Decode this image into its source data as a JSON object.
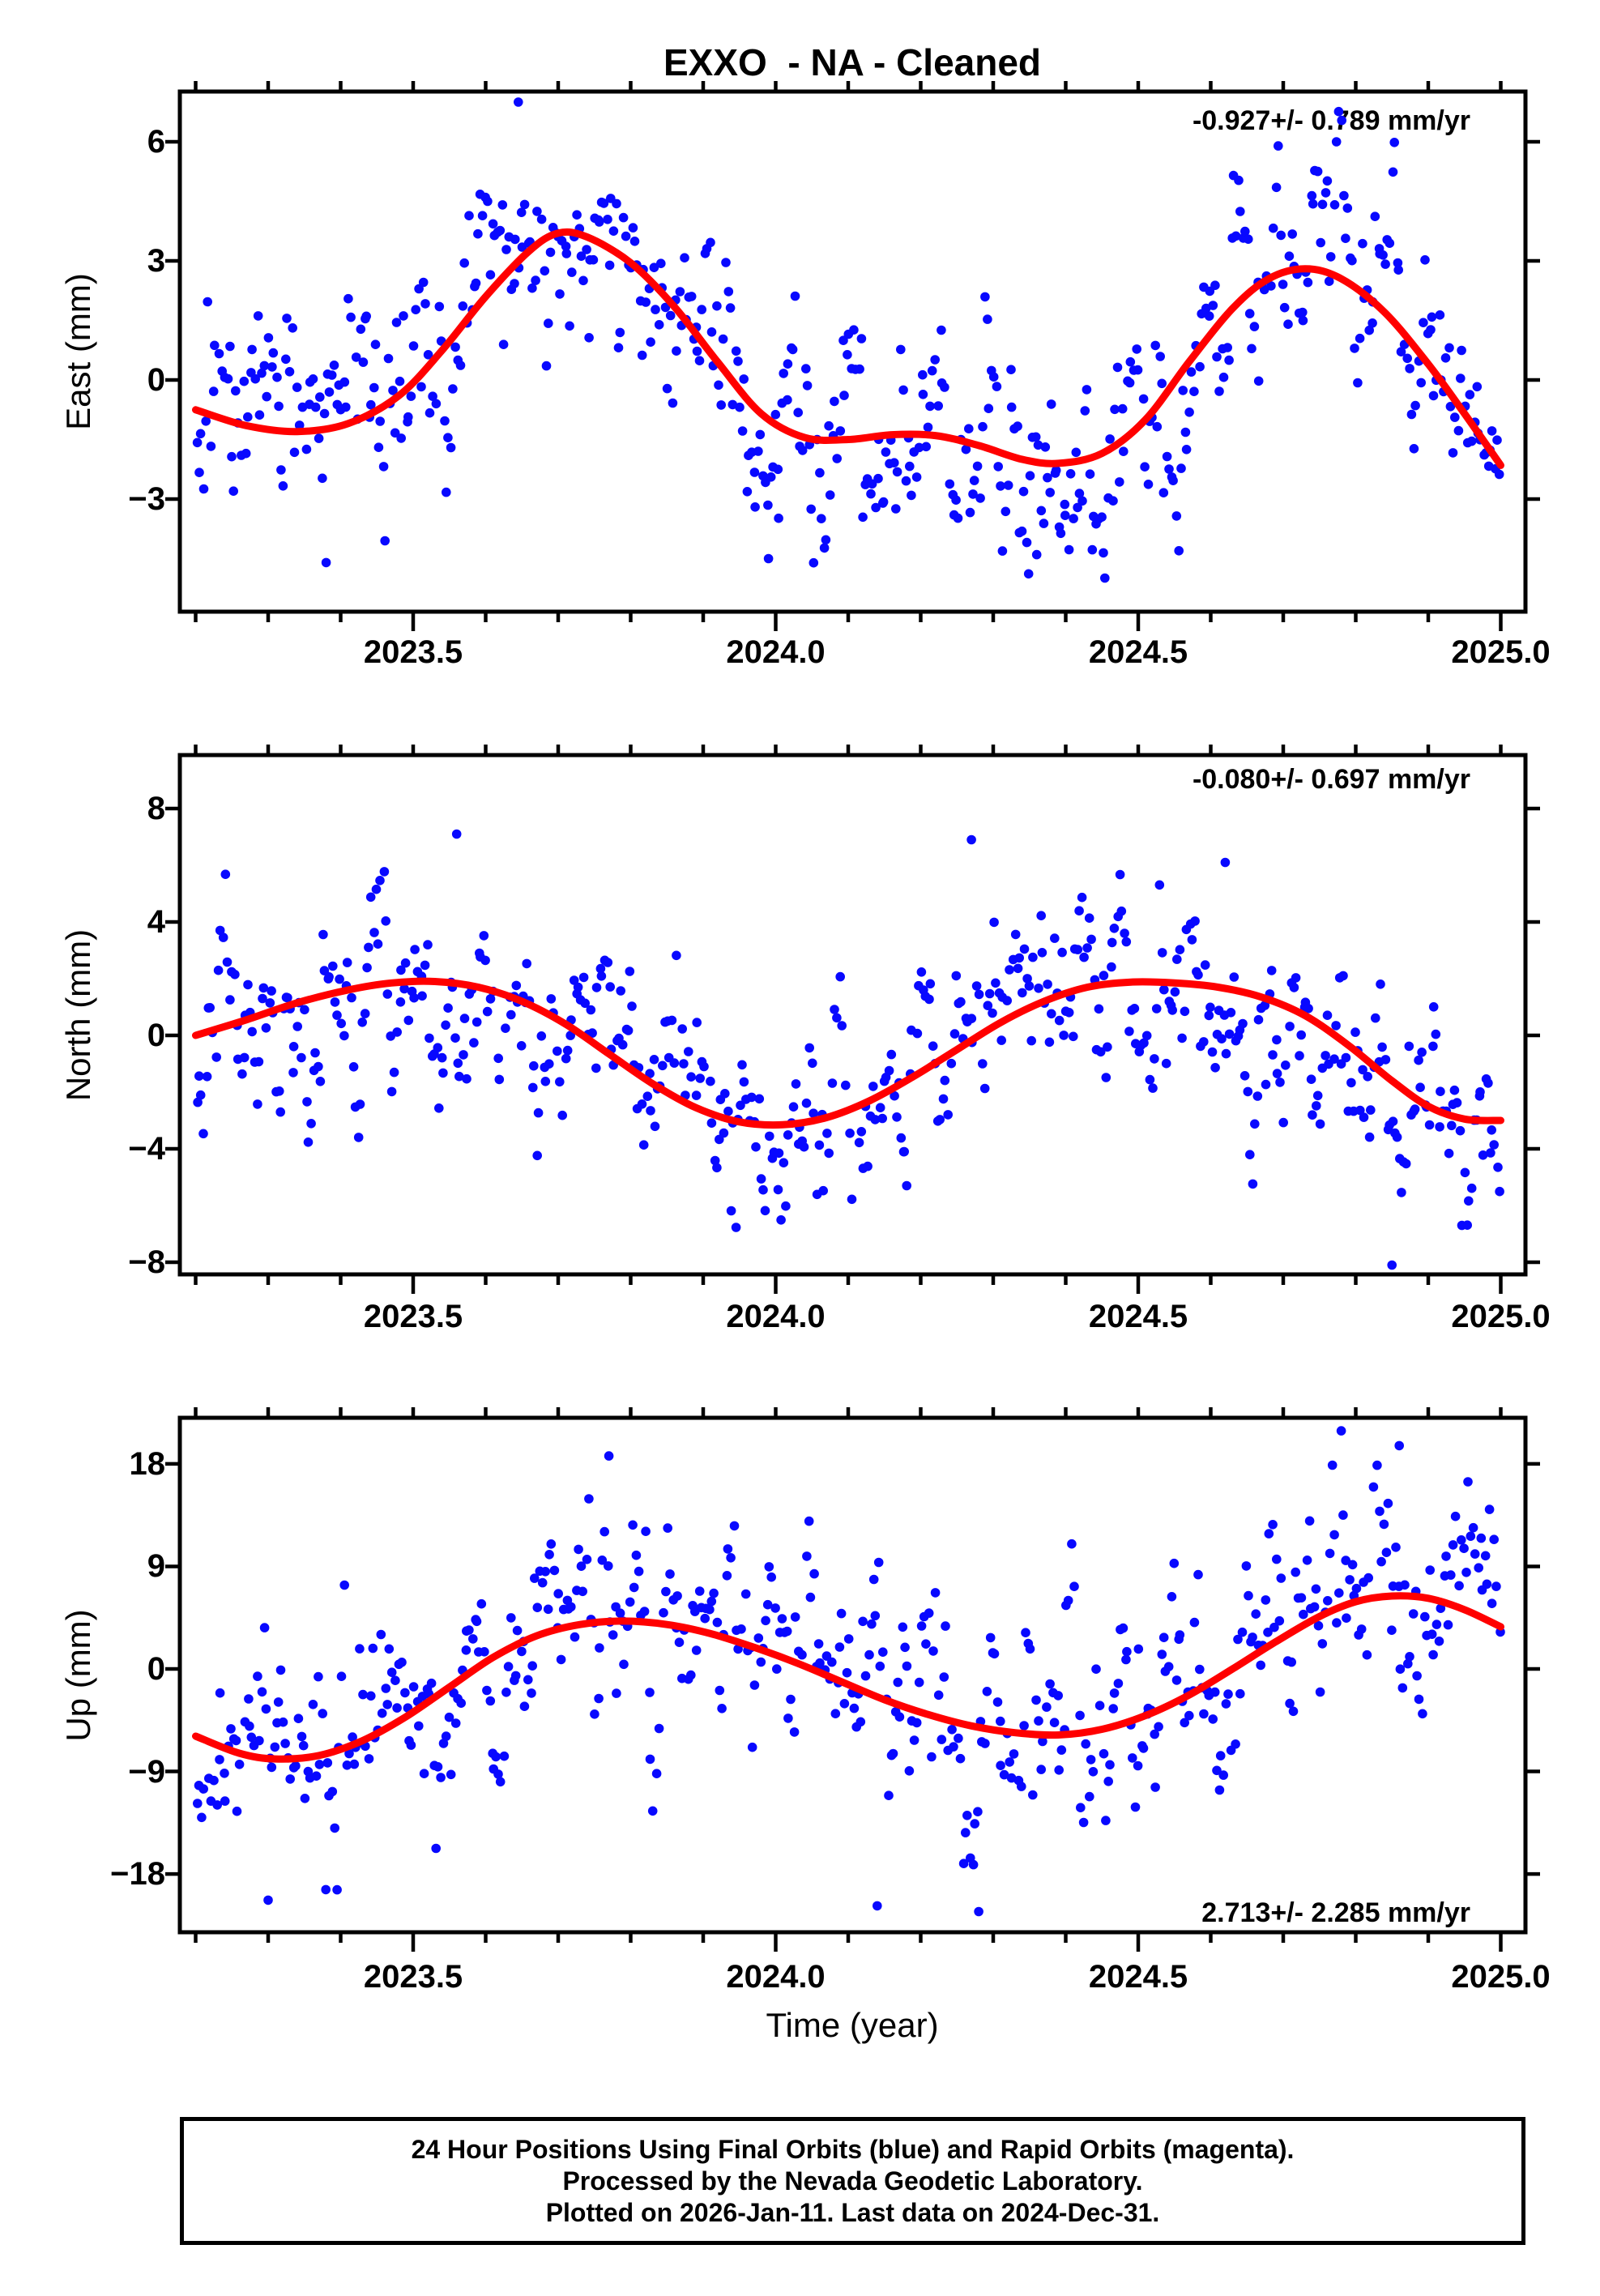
{
  "title": "EXXO  - NA - Cleaned",
  "xlabel": "Time (year)",
  "footer": {
    "line1": "24 Hour Positions Using Final Orbits (blue) and Rapid Orbits (magenta).",
    "line2": "Processed by the Nevada Geodetic Laboratory.",
    "line3": "Plotted on 2026-Jan-11. Last data on 2024-Dec-31."
  },
  "colors": {
    "points": "#0808ff",
    "trend": "#ff0000",
    "frame": "#000000",
    "background": "#ffffff"
  },
  "axis": {
    "xlim": [
      2023.178,
      2025.034
    ],
    "x_major_ticks": [
      2023.5,
      2024.0,
      2024.5,
      2025.0
    ],
    "x_major_labels": [
      "2023.5",
      "2024.0",
      "2024.5",
      "2025.0"
    ],
    "x_minor_step": 0.1,
    "grid": false,
    "tick_direction": "out"
  },
  "chart_data": [
    {
      "type": "scatter",
      "component": "East",
      "ylabel": "East (mm)",
      "annotation": "-0.927+/- 0.789 mm/yr",
      "annotation_corner": "top-right",
      "velocity_mm_per_yr": -0.927,
      "velocity_sigma_mm_per_yr": 0.789,
      "ylim": [
        -5.84,
        7.27
      ],
      "yticks": [
        6,
        3,
        0,
        -3
      ],
      "ytick_labels": [
        "6",
        "3",
        "0",
        "−3"
      ],
      "trend_curve": [
        [
          2023.2,
          -0.75
        ],
        [
          2023.27,
          -1.15
        ],
        [
          2023.34,
          -1.3
        ],
        [
          2023.41,
          -1.1
        ],
        [
          2023.48,
          -0.4
        ],
        [
          2023.54,
          0.75
        ],
        [
          2023.6,
          2.1
        ],
        [
          2023.66,
          3.25
        ],
        [
          2023.7,
          3.7
        ],
        [
          2023.74,
          3.6
        ],
        [
          2023.8,
          2.95
        ],
        [
          2023.86,
          1.85
        ],
        [
          2023.92,
          0.45
        ],
        [
          2023.98,
          -0.85
        ],
        [
          2024.04,
          -1.45
        ],
        [
          2024.1,
          -1.5
        ],
        [
          2024.16,
          -1.38
        ],
        [
          2024.22,
          -1.4
        ],
        [
          2024.28,
          -1.65
        ],
        [
          2024.34,
          -2.0
        ],
        [
          2024.39,
          -2.1
        ],
        [
          2024.45,
          -1.85
        ],
        [
          2024.51,
          -1.0
        ],
        [
          2024.57,
          0.45
        ],
        [
          2024.63,
          1.8
        ],
        [
          2024.68,
          2.55
        ],
        [
          2024.73,
          2.8
        ],
        [
          2024.78,
          2.55
        ],
        [
          2024.84,
          1.7
        ],
        [
          2024.9,
          0.4
        ],
        [
          2024.95,
          -0.85
        ],
        [
          2025.0,
          -2.15
        ]
      ],
      "scatter_model": {
        "n": 560,
        "sigma_mm": 1.55,
        "seed": 101,
        "t_range": [
          2023.2,
          2025.0
        ],
        "gap_prob": 0.025
      },
      "outliers": [
        [
          2023.645,
          7.0
        ],
        [
          2023.38,
          -4.6
        ],
        [
          2023.99,
          -4.5
        ],
        [
          2024.36,
          -4.4
        ]
      ]
    },
    {
      "type": "scatter",
      "component": "North",
      "ylabel": "North (mm)",
      "annotation": "-0.080+/- 0.697 mm/yr",
      "annotation_corner": "top-right",
      "velocity_mm_per_yr": -0.08,
      "velocity_sigma_mm_per_yr": 0.697,
      "ylim": [
        -8.43,
        9.89
      ],
      "yticks": [
        8,
        4,
        0,
        -4,
        -8
      ],
      "ytick_labels": [
        "8",
        "4",
        "0",
        "−4",
        "−8"
      ],
      "trend_curve": [
        [
          2023.2,
          0.0
        ],
        [
          2023.27,
          0.55
        ],
        [
          2023.34,
          1.15
        ],
        [
          2023.41,
          1.6
        ],
        [
          2023.47,
          1.85
        ],
        [
          2023.53,
          1.9
        ],
        [
          2023.59,
          1.7
        ],
        [
          2023.65,
          1.2
        ],
        [
          2023.71,
          0.4
        ],
        [
          2023.77,
          -0.65
        ],
        [
          2023.83,
          -1.7
        ],
        [
          2023.89,
          -2.55
        ],
        [
          2023.95,
          -3.05
        ],
        [
          2024.01,
          -3.15
        ],
        [
          2024.07,
          -2.9
        ],
        [
          2024.13,
          -2.3
        ],
        [
          2024.19,
          -1.45
        ],
        [
          2024.25,
          -0.5
        ],
        [
          2024.31,
          0.45
        ],
        [
          2024.37,
          1.2
        ],
        [
          2024.43,
          1.7
        ],
        [
          2024.49,
          1.88
        ],
        [
          2024.55,
          1.85
        ],
        [
          2024.61,
          1.7
        ],
        [
          2024.67,
          1.35
        ],
        [
          2024.73,
          0.7
        ],
        [
          2024.79,
          -0.35
        ],
        [
          2024.85,
          -1.6
        ],
        [
          2024.9,
          -2.5
        ],
        [
          2024.95,
          -2.95
        ],
        [
          2025.0,
          -3.0
        ]
      ],
      "scatter_model": {
        "n": 560,
        "sigma_mm": 1.8,
        "seed": 202,
        "t_range": [
          2023.2,
          2025.0
        ],
        "gap_prob": 0.025
      },
      "outliers": [
        [
          2023.56,
          7.1
        ],
        [
          2024.27,
          6.9
        ],
        [
          2024.62,
          6.1
        ],
        [
          2024.85,
          -8.1
        ]
      ]
    },
    {
      "type": "scatter",
      "component": "Up",
      "ylabel": "Up (mm)",
      "annotation": "2.713+/- 2.285 mm/yr",
      "annotation_corner": "bottom-right",
      "velocity_mm_per_yr": 2.713,
      "velocity_sigma_mm_per_yr": 2.285,
      "ylim": [
        -23.1,
        22.0
      ],
      "yticks": [
        18,
        9,
        0,
        -9,
        -18
      ],
      "ytick_labels": [
        "18",
        "9",
        "0",
        "−9",
        "−18"
      ],
      "trend_curve": [
        [
          2023.2,
          -5.9
        ],
        [
          2023.26,
          -7.4
        ],
        [
          2023.31,
          -7.9
        ],
        [
          2023.37,
          -7.6
        ],
        [
          2023.43,
          -6.3
        ],
        [
          2023.49,
          -4.2
        ],
        [
          2023.55,
          -1.6
        ],
        [
          2023.61,
          1.0
        ],
        [
          2023.67,
          2.9
        ],
        [
          2023.73,
          3.9
        ],
        [
          2023.79,
          4.2
        ],
        [
          2023.85,
          3.9
        ],
        [
          2023.91,
          3.1
        ],
        [
          2023.97,
          1.9
        ],
        [
          2024.03,
          0.5
        ],
        [
          2024.09,
          -1.1
        ],
        [
          2024.15,
          -2.7
        ],
        [
          2024.21,
          -4.0
        ],
        [
          2024.27,
          -5.0
        ],
        [
          2024.33,
          -5.6
        ],
        [
          2024.39,
          -5.8
        ],
        [
          2024.45,
          -5.3
        ],
        [
          2024.51,
          -4.1
        ],
        [
          2024.57,
          -2.3
        ],
        [
          2024.63,
          0.0
        ],
        [
          2024.69,
          2.4
        ],
        [
          2024.75,
          4.6
        ],
        [
          2024.8,
          5.9
        ],
        [
          2024.85,
          6.4
        ],
        [
          2024.9,
          6.2
        ],
        [
          2024.95,
          5.2
        ],
        [
          2025.0,
          3.7
        ]
      ],
      "scatter_model": {
        "n": 540,
        "sigma_mm": 5.3,
        "seed": 303,
        "t_range": [
          2023.2,
          2025.0
        ],
        "gap_prob": 0.025
      },
      "outliers": [
        [
          2023.77,
          18.7
        ],
        [
          2024.78,
          20.9
        ],
        [
          2024.86,
          19.6
        ],
        [
          2023.3,
          -20.3
        ],
        [
          2024.28,
          -21.3
        ],
        [
          2024.14,
          -20.8
        ]
      ]
    }
  ]
}
